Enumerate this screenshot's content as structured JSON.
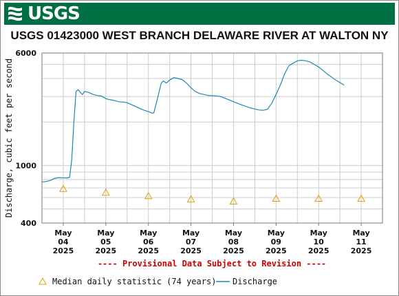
{
  "header": {
    "logo_text": "USGS",
    "logo_icon": "usgs-wave-icon",
    "banner_color": "#006f41"
  },
  "chart_data": {
    "type": "line",
    "title": "USGS 01423000 WEST BRANCH DELAWARE RIVER AT WALTON NY",
    "ylabel": "Discharge, cubic feet per second",
    "yscale": "log",
    "ylim": [
      400,
      6000
    ],
    "y_tick_labels": [
      {
        "value": 400,
        "label": "400"
      },
      {
        "value": 1000,
        "label": "1000"
      },
      {
        "value": 6000,
        "label": "6000"
      }
    ],
    "xlim": [
      3.5,
      11.5
    ],
    "x_ticks": [
      {
        "day": 4,
        "month": "May",
        "date": "04",
        "year": "2025"
      },
      {
        "day": 5,
        "month": "May",
        "date": "05",
        "year": "2025"
      },
      {
        "day": 6,
        "month": "May",
        "date": "06",
        "year": "2025"
      },
      {
        "day": 7,
        "month": "May",
        "date": "07",
        "year": "2025"
      },
      {
        "day": 8,
        "month": "May",
        "date": "08",
        "year": "2025"
      },
      {
        "day": 9,
        "month": "May",
        "date": "09",
        "year": "2025"
      },
      {
        "day": 10,
        "month": "May",
        "date": "10",
        "year": "2025"
      },
      {
        "day": 11,
        "month": "May",
        "date": "11",
        "year": "2025"
      }
    ],
    "grid": true,
    "note": "---- Provisional Data Subject to Revision ----",
    "note_color": "#cc0000",
    "series": [
      {
        "name": "Discharge",
        "kind": "line",
        "color": "#1a86b8",
        "points": [
          [
            3.5,
            770
          ],
          [
            3.6,
            775
          ],
          [
            3.7,
            790
          ],
          [
            3.8,
            815
          ],
          [
            3.9,
            825
          ],
          [
            4.0,
            822
          ],
          [
            4.1,
            820
          ],
          [
            4.15,
            830
          ],
          [
            4.2,
            1100
          ],
          [
            4.25,
            2000
          ],
          [
            4.3,
            3250
          ],
          [
            4.35,
            3350
          ],
          [
            4.4,
            3200
          ],
          [
            4.45,
            3100
          ],
          [
            4.5,
            3250
          ],
          [
            4.6,
            3200
          ],
          [
            4.7,
            3100
          ],
          [
            4.8,
            3050
          ],
          [
            4.9,
            3020
          ],
          [
            5.0,
            2900
          ],
          [
            5.1,
            2850
          ],
          [
            5.2,
            2820
          ],
          [
            5.3,
            2760
          ],
          [
            5.4,
            2750
          ],
          [
            5.5,
            2720
          ],
          [
            5.6,
            2640
          ],
          [
            5.7,
            2560
          ],
          [
            5.8,
            2480
          ],
          [
            5.9,
            2410
          ],
          [
            6.0,
            2360
          ],
          [
            6.1,
            2300
          ],
          [
            6.13,
            2320
          ],
          [
            6.2,
            2800
          ],
          [
            6.3,
            3700
          ],
          [
            6.35,
            3850
          ],
          [
            6.42,
            3720
          ],
          [
            6.5,
            3900
          ],
          [
            6.6,
            4050
          ],
          [
            6.7,
            4000
          ],
          [
            6.8,
            3920
          ],
          [
            6.9,
            3700
          ],
          [
            7.0,
            3450
          ],
          [
            7.1,
            3250
          ],
          [
            7.2,
            3150
          ],
          [
            7.3,
            3100
          ],
          [
            7.4,
            3050
          ],
          [
            7.5,
            3040
          ],
          [
            7.6,
            3030
          ],
          [
            7.7,
            3000
          ],
          [
            7.8,
            2920
          ],
          [
            7.9,
            2840
          ],
          [
            8.0,
            2760
          ],
          [
            8.2,
            2620
          ],
          [
            8.4,
            2500
          ],
          [
            8.6,
            2420
          ],
          [
            8.7,
            2410
          ],
          [
            8.8,
            2450
          ],
          [
            8.9,
            2700
          ],
          [
            9.0,
            3100
          ],
          [
            9.1,
            3600
          ],
          [
            9.2,
            4300
          ],
          [
            9.3,
            4900
          ],
          [
            9.4,
            5100
          ],
          [
            9.5,
            5300
          ],
          [
            9.6,
            5350
          ],
          [
            9.7,
            5300
          ],
          [
            9.8,
            5200
          ],
          [
            9.9,
            5000
          ],
          [
            10.0,
            4800
          ],
          [
            10.1,
            4550
          ],
          [
            10.2,
            4300
          ],
          [
            10.3,
            4100
          ],
          [
            10.4,
            3900
          ],
          [
            10.5,
            3750
          ],
          [
            10.6,
            3600
          ]
        ]
      },
      {
        "name": "Median daily statistic (74 years)",
        "kind": "marker",
        "marker": "triangle",
        "color": "#e0a000",
        "x": [
          4,
          5,
          6,
          7,
          8,
          9,
          10,
          11
        ],
        "values": [
          690,
          650,
          615,
          585,
          565,
          590,
          590,
          590
        ]
      }
    ],
    "legend": {
      "placement": "bottom",
      "items": [
        {
          "label": "Median daily statistic (74 years)",
          "symbol": "triangle",
          "color": "#e0a000"
        },
        {
          "label": "Discharge",
          "symbol": "line",
          "color": "#1a86b8"
        }
      ]
    }
  }
}
